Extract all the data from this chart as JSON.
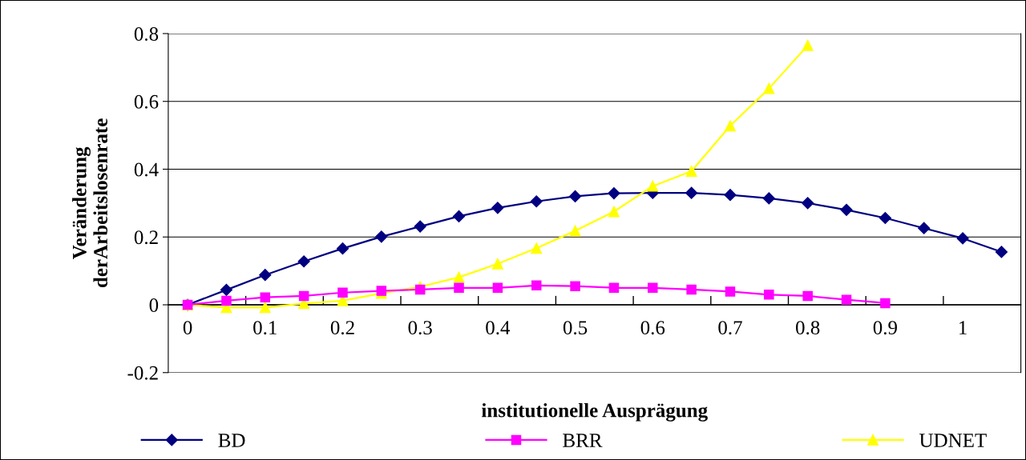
{
  "chart_data": {
    "type": "line",
    "xlabel": "institutionelle Ausprägung",
    "ylabel": "Veränderung\nderArbeitslosenrate",
    "categories": [
      "0",
      null,
      "0.1",
      null,
      "0.2",
      null,
      "0.3",
      null,
      "0.4",
      null,
      "0.5",
      null,
      "0.6",
      null,
      "0.7",
      null,
      "0.8",
      null,
      "0.9",
      null,
      "1",
      null
    ],
    "series": [
      {
        "name": "BD",
        "color": "#000080",
        "marker": "diamond",
        "values": [
          0,
          0.044,
          0.088,
          0.128,
          0.166,
          0.201,
          0.231,
          0.261,
          0.286,
          0.305,
          0.32,
          0.329,
          0.33,
          0.33,
          0.324,
          0.314,
          0.3,
          0.28,
          0.256,
          0.226,
          0.196,
          0.156
        ]
      },
      {
        "name": "BRR",
        "color": "#ff00ff",
        "marker": "square",
        "values": [
          0,
          0.012,
          0.022,
          0.026,
          0.036,
          0.041,
          0.045,
          0.05,
          0.05,
          0.057,
          0.055,
          0.05,
          0.05,
          0.045,
          0.039,
          0.03,
          0.026,
          0.015,
          0.005,
          null,
          null,
          null
        ]
      },
      {
        "name": "UDNET",
        "color": "#ffff00",
        "marker": "triangle",
        "values": [
          0,
          -0.008,
          -0.008,
          0.004,
          0.012,
          0.034,
          0.053,
          0.081,
          0.121,
          0.167,
          0.218,
          0.275,
          0.35,
          0.394,
          0.528,
          0.638,
          0.765,
          null,
          null,
          null,
          null,
          null
        ]
      }
    ],
    "ylim": [
      -0.2,
      0.8
    ],
    "yticks": [
      {
        "value": -0.2,
        "label": "-0.2"
      },
      0,
      0.2,
      0.4,
      0.6,
      0.8
    ],
    "grid": "y",
    "legend": "bottom"
  }
}
